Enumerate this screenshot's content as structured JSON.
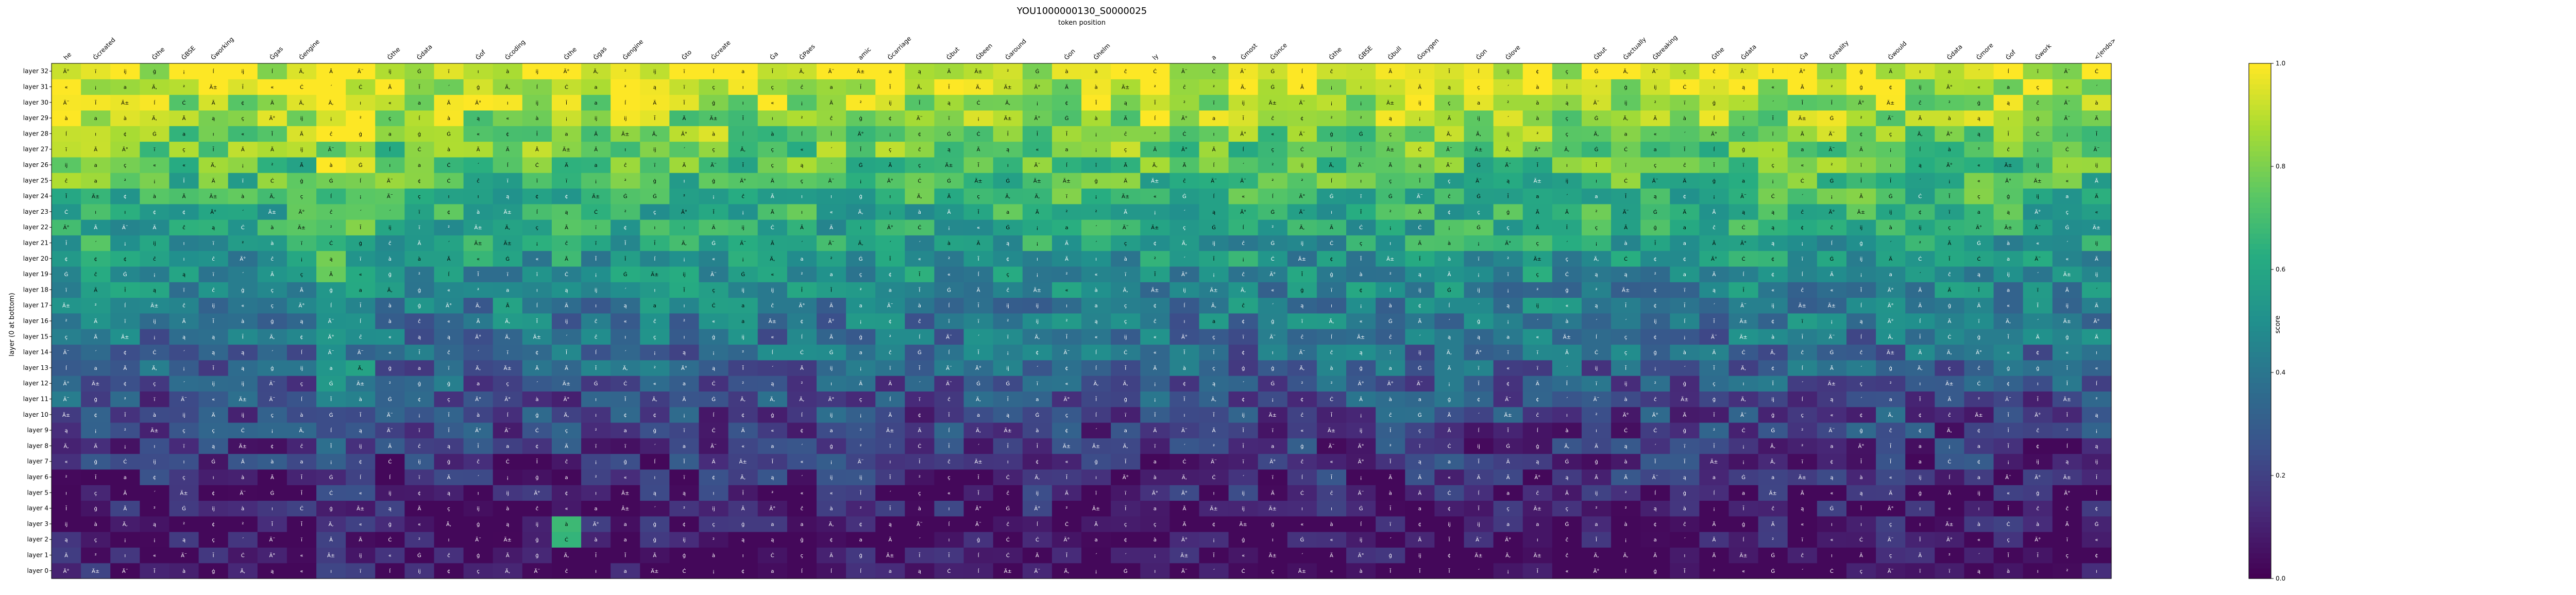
{
  "chart_data": {
    "type": "heatmap",
    "title": "YOU1000000130_S0000025",
    "subtitle": "token position",
    "xlabel": "",
    "ylabel": "layer (0 at bottom)",
    "colorbar_label": "score",
    "colorbar_ticks": [
      "0.0",
      "0.2",
      "0.4",
      "0.6",
      "0.8",
      "1.0"
    ],
    "vmin": 0,
    "vmax": 1,
    "colormap": "viridis",
    "x_tokens": [
      "he",
      "Ġcreated",
      "",
      "Ġthe",
      "ĠBSE",
      "Ġworking",
      "",
      "Ġgas",
      "Ġengine",
      "",
      "",
      "Ġthe",
      "Ġdata",
      "",
      "Ġof",
      "Ġcoding",
      "",
      "Ġthe",
      "Ġgas",
      "Ġengine",
      "",
      "Ġto",
      "Ġcreate",
      "",
      "Ġa",
      "ĠPaes",
      "",
      "amic",
      "Ġcarriage",
      "",
      "Ġbut",
      "Ġbeen",
      "Ġaround",
      "",
      "Ġon",
      "Ġhelm",
      "",
      "ly",
      "",
      "a",
      "Ġmost",
      "Ġsince",
      "",
      "Ġthe",
      "ĠBSE",
      "Ġbull",
      "Ġoxygen",
      "",
      "Ġon",
      "Ġlove",
      "",
      "",
      "Ġbut",
      "Ġactually",
      "Ġbreaking",
      "",
      "Ġthe",
      "Ġdata",
      "",
      "Ġa",
      "Ġreality",
      "",
      "Ġwould",
      "",
      "Ġdata",
      "Ġmore",
      "Ġof",
      "Ġwork",
      "",
      "<|endo>"
    ],
    "y_layers": [
      "layer 0",
      "layer 1",
      "layer 2",
      "layer 3",
      "layer 4",
      "layer 5",
      "layer 6",
      "layer 7",
      "layer 8",
      "layer 9",
      "layer 10",
      "layer 11",
      "layer 12",
      "layer 13",
      "layer 14",
      "layer 15",
      "layer 16",
      "layer 17",
      "layer 18",
      "layer 19",
      "layer 20",
      "layer 21",
      "layer 22",
      "layer 23",
      "layer 24",
      "layer 25",
      "layer 26",
      "layer 27",
      "layer 28",
      "layer 29",
      "layer 30",
      "layer 31",
      "layer 32"
    ],
    "n_cols": 70,
    "cell_glyphs": [
      "a",
      "Ä",
      "Ä,",
      "ï",
      "Ã",
      "Ġ",
      "ĉ",
      "Ċ",
      "Ĩ",
      "ą",
      "ı",
      "Ī",
      "ĺ",
      "ç",
      "à",
      "Ä°",
      "Ä±",
      "Ä¨",
      "ĳ",
      "ģ",
      "¡",
      "¢",
      "«",
      "²",
      "´"
    ],
    "highlights": [
      {
        "layer": 3,
        "col": 17,
        "value": 0.68
      },
      {
        "layer": 2,
        "col": 17,
        "value": 0.66
      }
    ]
  }
}
